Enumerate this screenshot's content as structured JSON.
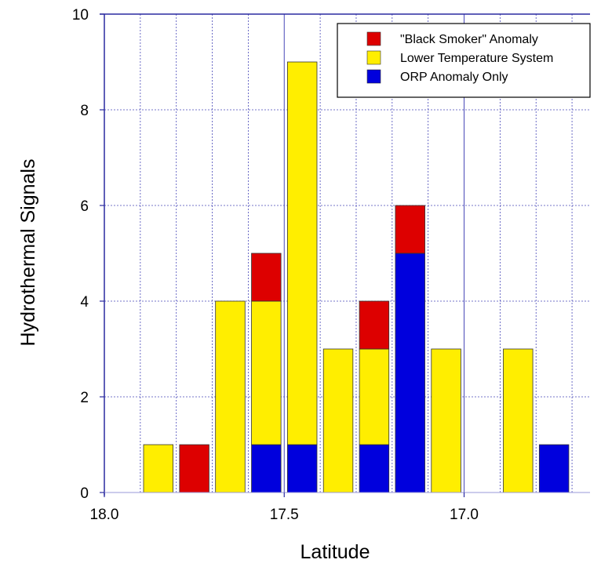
{
  "chart_data": {
    "type": "bar",
    "stacked": true,
    "xlabel": "Latitude",
    "ylabel": "Hydrothermal Signals",
    "x_reversed": true,
    "xlim": [
      18.0,
      16.65
    ],
    "ylim": [
      0,
      10
    ],
    "x_ticks": [
      18.0,
      17.5,
      17.0
    ],
    "x_tick_labels": [
      "18.0",
      "17.5",
      "17.0"
    ],
    "y_ticks": [
      0,
      2,
      4,
      6,
      8,
      10
    ],
    "y_tick_labels": [
      "0",
      "2",
      "4",
      "6",
      "8",
      "10"
    ],
    "grid": true,
    "legend_position": "top-right",
    "categories": [
      17.85,
      17.75,
      17.65,
      17.55,
      17.45,
      17.35,
      17.25,
      17.15,
      17.05,
      16.95,
      16.85,
      16.75
    ],
    "series": [
      {
        "name": "ORP Anomaly Only",
        "color": "#0000dd",
        "values": [
          0,
          0,
          0,
          1,
          1,
          0,
          1,
          5,
          0,
          0,
          0,
          1
        ]
      },
      {
        "name": "Lower Temperature System",
        "color": "#ffee00",
        "values": [
          1,
          0,
          4,
          3,
          8,
          3,
          2,
          0,
          3,
          0,
          3,
          0
        ]
      },
      {
        "name": "\"Black Smoker\" Anomaly",
        "color": "#dd0000",
        "values": [
          0,
          1,
          0,
          1,
          0,
          0,
          1,
          1,
          0,
          0,
          0,
          0
        ]
      }
    ],
    "legend_order": [
      2,
      1,
      0
    ]
  }
}
